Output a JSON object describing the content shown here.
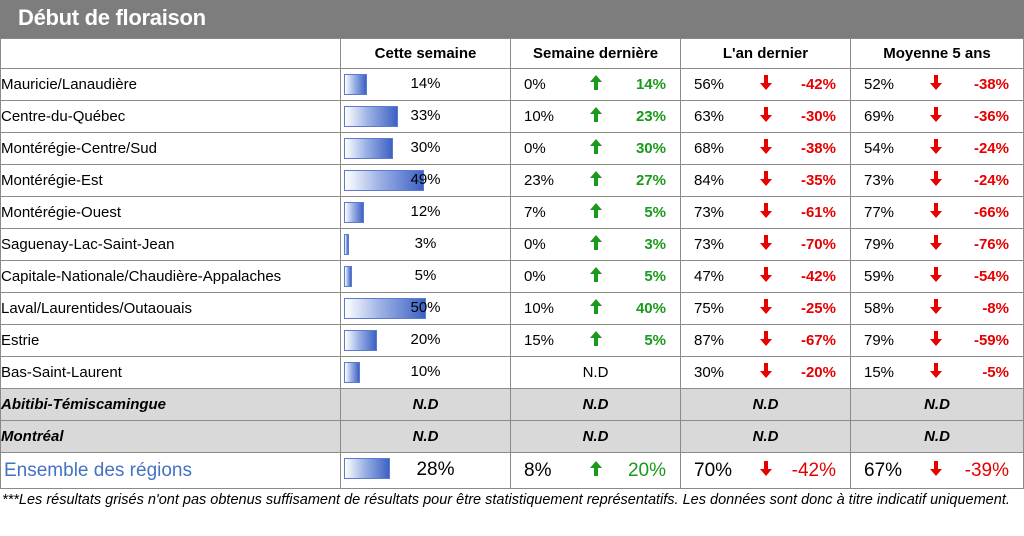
{
  "title": "Début de floraison",
  "headers": {
    "col1": "Cette semaine",
    "col2": "Semaine dernière",
    "col3": "L'an dernier",
    "col4": "Moyenne 5 ans"
  },
  "rows": [
    {
      "region": "Mauricie/Lanaudière",
      "cur": "14%",
      "cur_value": 14,
      "lw_val": "0%",
      "lw_diff": "14%",
      "ly_val": "56%",
      "ly_diff": "-42%",
      "avg_val": "52%",
      "avg_diff": "-38%"
    },
    {
      "region": "Centre-du-Québec",
      "cur": "33%",
      "cur_value": 33,
      "lw_val": "10%",
      "lw_diff": "23%",
      "ly_val": "63%",
      "ly_diff": "-30%",
      "avg_val": "69%",
      "avg_diff": "-36%"
    },
    {
      "region": "Montérégie-Centre/Sud",
      "cur": "30%",
      "cur_value": 30,
      "lw_val": "0%",
      "lw_diff": "30%",
      "ly_val": "68%",
      "ly_diff": "-38%",
      "avg_val": "54%",
      "avg_diff": "-24%"
    },
    {
      "region": "Montérégie-Est",
      "cur": "49%",
      "cur_value": 49,
      "lw_val": "23%",
      "lw_diff": "27%",
      "ly_val": "84%",
      "ly_diff": "-35%",
      "avg_val": "73%",
      "avg_diff": "-24%"
    },
    {
      "region": "Montérégie-Ouest",
      "cur": "12%",
      "cur_value": 12,
      "lw_val": "7%",
      "lw_diff": "5%",
      "ly_val": "73%",
      "ly_diff": "-61%",
      "avg_val": "77%",
      "avg_diff": "-66%"
    },
    {
      "region": "Saguenay-Lac-Saint-Jean",
      "cur": "3%",
      "cur_value": 3,
      "lw_val": "0%",
      "lw_diff": "3%",
      "ly_val": "73%",
      "ly_diff": "-70%",
      "avg_val": "79%",
      "avg_diff": "-76%"
    },
    {
      "region": "Capitale-Nationale/Chaudière-Appalaches",
      "cur": "5%",
      "cur_value": 5,
      "lw_val": "0%",
      "lw_diff": "5%",
      "ly_val": "47%",
      "ly_diff": "-42%",
      "avg_val": "59%",
      "avg_diff": "-54%"
    },
    {
      "region": "Laval/Laurentides/Outaouais",
      "cur": "50%",
      "cur_value": 50,
      "lw_val": "10%",
      "lw_diff": "40%",
      "ly_val": "75%",
      "ly_diff": "-25%",
      "avg_val": "58%",
      "avg_diff": "-8%"
    },
    {
      "region": "Estrie",
      "cur": "20%",
      "cur_value": 20,
      "lw_val": "15%",
      "lw_diff": "5%",
      "ly_val": "87%",
      "ly_diff": "-67%",
      "avg_val": "79%",
      "avg_diff": "-59%"
    }
  ],
  "bsl": {
    "region": "Bas-Saint-Laurent",
    "cur": "10%",
    "cur_value": 10,
    "lw_nd": "N.D",
    "ly_val": "30%",
    "ly_diff": "-20%",
    "avg_val": "15%",
    "avg_diff": "-5%"
  },
  "grey_rows": [
    {
      "region": "Abitibi-Témiscamingue",
      "nd": "N.D"
    },
    {
      "region": "Montréal",
      "nd": "N.D"
    }
  ],
  "total": {
    "region": "Ensemble des régions",
    "cur": "28%",
    "cur_value": 28,
    "lw_val": "8%",
    "lw_diff": "20%",
    "ly_val": "70%",
    "ly_diff": "-42%",
    "avg_val": "67%",
    "avg_diff": "-39%"
  },
  "footnote": "***Les résultats grisés n'ont pas obtenus suffisament de résultats pour être statistiquement représentatifs. Les données sont donc à titre indicatif uniquement.",
  "colors": {
    "up": "#1a9a1a",
    "down": "#e60000",
    "bar": "#3d62c4",
    "grey": "#d9d9d9",
    "title_bg": "#7d7d7d",
    "total_label": "#4472c4"
  },
  "icons": {
    "up": "arrow-up-icon",
    "down": "arrow-down-icon"
  }
}
